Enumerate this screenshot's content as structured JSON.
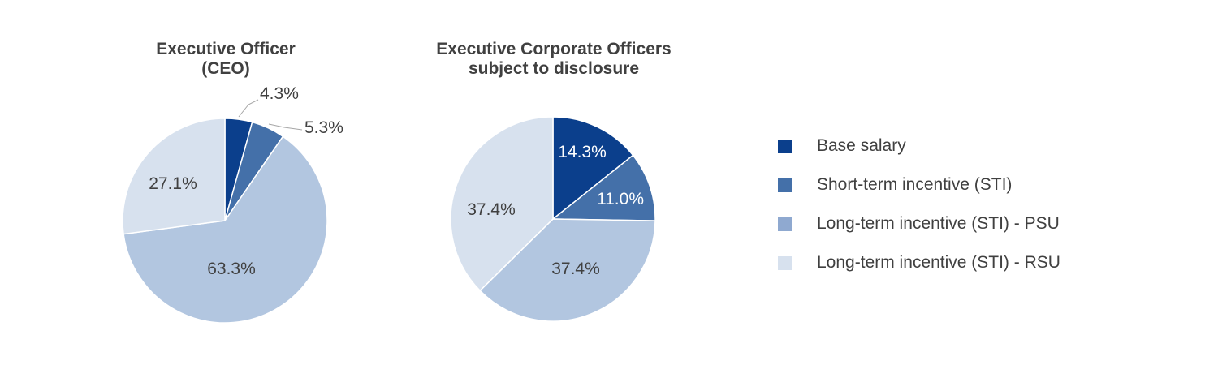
{
  "colors": {
    "base_salary": "#0b3f8c",
    "sti": "#4470a9",
    "ltip_psu": "#b2c6e0",
    "ltip_rsu": "#d7e1ee",
    "text": "#404040",
    "text_inverse": "#ffffff"
  },
  "legend": [
    {
      "label": "Base salary",
      "color": "#0b3f8c"
    },
    {
      "label": "Short-term incentive (STI)",
      "color": "#4470a9"
    },
    {
      "label": "Long-term incentive (STI) - PSU",
      "color": "#8fa9d0"
    },
    {
      "label": "Long-term incentive (STI) - RSU",
      "color": "#d7e1ee"
    }
  ],
  "chart_data": [
    {
      "type": "pie",
      "title_line1": "Executive Officer",
      "title_line2": "(CEO)",
      "categories": [
        "Base salary",
        "Short-term incentive (STI)",
        "Long-term incentive (STI) - PSU",
        "Long-term incentive (STI) - RSU"
      ],
      "values": [
        4.3,
        5.3,
        63.3,
        27.1
      ],
      "labels": [
        "4.3%",
        "5.3%",
        "63.3%",
        "27.1%"
      ],
      "colors": [
        "#0b3f8c",
        "#4470a9",
        "#b2c6e0",
        "#d7e1ee"
      ]
    },
    {
      "type": "pie",
      "title_line1": "Executive Corporate Officers",
      "title_line2": "subject to disclosure",
      "categories": [
        "Base salary",
        "Short-term incentive (STI)",
        "Long-term incentive (STI) - PSU",
        "Long-term incentive (STI) - RSU"
      ],
      "values": [
        14.3,
        11.0,
        37.4,
        37.4
      ],
      "labels": [
        "14.3%",
        "11.0%",
        "37.4%",
        "37.4%"
      ],
      "colors": [
        "#0b3f8c",
        "#4470a9",
        "#b2c6e0",
        "#d7e1ee"
      ]
    }
  ]
}
